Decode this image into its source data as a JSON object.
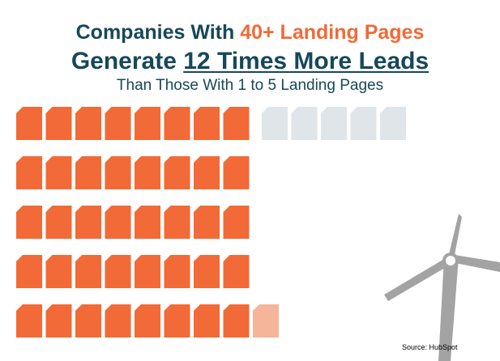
{
  "headline": {
    "line1_prefix": "Companies With ",
    "line1_accent": "40+ Landing Pages",
    "line2_prefix": "Generate ",
    "line2_emphasis": "12 Times More Leads",
    "line3": "Than Those With 1 to 5 Landing Pages"
  },
  "pictograph": {
    "icon": "page-icon",
    "rows": [
      {
        "filled": 8,
        "partial": 0,
        "empty": 5
      },
      {
        "filled": 8,
        "partial": 0,
        "empty": 0
      },
      {
        "filled": 8,
        "partial": 0,
        "empty": 0
      },
      {
        "filled": 8,
        "partial": 0,
        "empty": 0
      },
      {
        "filled": 8,
        "partial": 1,
        "empty": 0
      }
    ]
  },
  "source": "Source: HubSpot",
  "colors": {
    "accent": "#f26a37",
    "partial": "#f4b59a",
    "empty": "#dfe5e8",
    "title": "#16485a",
    "windmill": "#a3a3a3"
  }
}
